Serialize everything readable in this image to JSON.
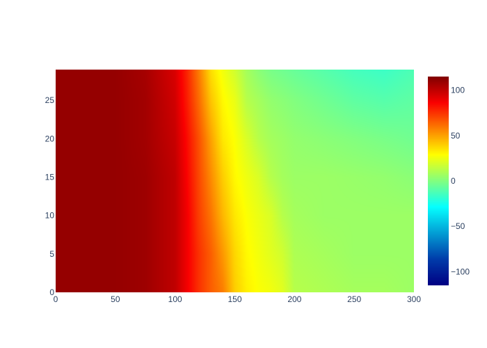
{
  "chart_data": {
    "type": "heatmap",
    "title": "",
    "xlabel": "",
    "ylabel": "",
    "xlim": [
      0,
      300
    ],
    "ylim": [
      0,
      29
    ],
    "x_ticks": [
      0,
      50,
      100,
      150,
      200,
      250,
      300
    ],
    "y_ticks": [
      0,
      5,
      10,
      15,
      20,
      25
    ],
    "x_tick_labels": [
      "0",
      "50",
      "100",
      "150",
      "200",
      "250",
      "300"
    ],
    "y_tick_labels": [
      "0",
      "5",
      "10",
      "15",
      "20",
      "25"
    ],
    "y_sample_rows": [
      0,
      5,
      10,
      15,
      20,
      25,
      29
    ],
    "x_sample_cols": [
      0,
      25,
      50,
      75,
      100,
      110,
      120,
      130,
      140,
      150,
      160,
      170,
      180,
      190,
      200,
      225,
      250,
      275,
      300
    ],
    "z_grid": [
      [
        110,
        110,
        110,
        108,
        100,
        88,
        75,
        65,
        58,
        40,
        32,
        28,
        26,
        22,
        12,
        10,
        8,
        8,
        6
      ],
      [
        110,
        110,
        110,
        108,
        100,
        88,
        75,
        65,
        52,
        38,
        30,
        26,
        22,
        18,
        10,
        8,
        6,
        6,
        6
      ],
      [
        110,
        110,
        110,
        108,
        100,
        88,
        72,
        60,
        45,
        34,
        28,
        24,
        20,
        12,
        8,
        6,
        6,
        6,
        6
      ],
      [
        110,
        110,
        110,
        108,
        100,
        86,
        70,
        55,
        40,
        30,
        25,
        20,
        12,
        8,
        6,
        6,
        5,
        4,
        2
      ],
      [
        110,
        110,
        110,
        107,
        98,
        84,
        68,
        50,
        34,
        28,
        20,
        12,
        8,
        6,
        4,
        2,
        0,
        -2,
        -4
      ],
      [
        110,
        110,
        110,
        107,
        96,
        80,
        62,
        42,
        30,
        24,
        12,
        8,
        4,
        2,
        0,
        -4,
        -8,
        -10,
        -8
      ],
      [
        110,
        110,
        110,
        106,
        94,
        78,
        58,
        36,
        26,
        18,
        8,
        2,
        -2,
        -4,
        -6,
        -10,
        -14,
        -16,
        -12
      ]
    ],
    "colorscale": {
      "name": "Jet",
      "zmin": -115,
      "zmax": 115,
      "stops": [
        [
          0.0,
          "#000083"
        ],
        [
          0.125,
          "#003caa"
        ],
        [
          0.375,
          "#05ffff"
        ],
        [
          0.625,
          "#ffff00"
        ],
        [
          0.875,
          "#fa0000"
        ],
        [
          1.0,
          "#800000"
        ]
      ]
    },
    "colorbar": {
      "ticks": [
        -100,
        -50,
        0,
        50,
        100
      ],
      "tick_labels": [
        "−100",
        "−50",
        "0",
        "50",
        "100"
      ]
    },
    "grid": false,
    "legend": "none"
  }
}
